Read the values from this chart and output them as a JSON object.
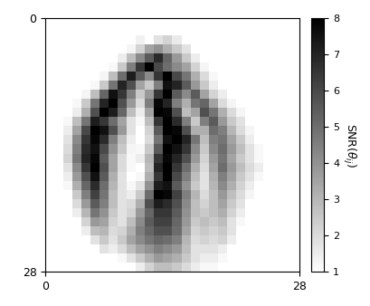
{
  "colormap": "gray_r",
  "vmin": 1,
  "vmax": 8,
  "colorbar_ticks": [
    1,
    2,
    3,
    4,
    5,
    6,
    7,
    8
  ],
  "xlim": [
    0,
    28
  ],
  "ylim": [
    28,
    0
  ],
  "xticks": [
    0,
    28
  ],
  "yticks": [
    0,
    28
  ],
  "figsize": [
    4.1,
    3.38
  ],
  "dpi": 100,
  "background": "#ffffff",
  "snr_data": [
    [
      0,
      0,
      0,
      0,
      0,
      0,
      0,
      0,
      0,
      0,
      0,
      0,
      0,
      0,
      0,
      0,
      0,
      0,
      0,
      0,
      0,
      0,
      0,
      0,
      0,
      0,
      0,
      0
    ],
    [
      0,
      0,
      0,
      0,
      0,
      0,
      0,
      0,
      0,
      0,
      0,
      0,
      0,
      0,
      0,
      0,
      0,
      0,
      0,
      0,
      0,
      0,
      0,
      0,
      0,
      0,
      0,
      0
    ],
    [
      0,
      0,
      0,
      0,
      0,
      0,
      0,
      0,
      0,
      0,
      1.4,
      0,
      1.8,
      2.2,
      1.6,
      0,
      0,
      0,
      0,
      0,
      0,
      0,
      0,
      0,
      0,
      0,
      0,
      0
    ],
    [
      0,
      0,
      0,
      0,
      0,
      0,
      0,
      0,
      0,
      1.3,
      2.2,
      3.5,
      4.0,
      3.2,
      2.5,
      1.8,
      0,
      0,
      0,
      0,
      0,
      0,
      0,
      0,
      0,
      0,
      0,
      0
    ],
    [
      0,
      0,
      0,
      0,
      0,
      0,
      0,
      0,
      1.5,
      2.8,
      4.2,
      5.5,
      6.8,
      5.2,
      3.8,
      2.5,
      1.5,
      0,
      0,
      0,
      0,
      0,
      0,
      0,
      0,
      0,
      0,
      0
    ],
    [
      0,
      0,
      0,
      0,
      0,
      0,
      0,
      1.2,
      2.5,
      4.5,
      6.5,
      8.0,
      6.0,
      5.0,
      4.2,
      3.5,
      2.2,
      1.3,
      0,
      0,
      0,
      0,
      0,
      0,
      0,
      0,
      0,
      0
    ],
    [
      0,
      0,
      0,
      0,
      0,
      0,
      1.3,
      2.8,
      5.0,
      7.2,
      5.5,
      4.2,
      6.5,
      8.0,
      6.0,
      4.8,
      3.2,
      2.0,
      1.2,
      0,
      0,
      0,
      0,
      0,
      0,
      0,
      0,
      0
    ],
    [
      0,
      0,
      0,
      0,
      0,
      1.2,
      2.5,
      4.8,
      7.0,
      5.8,
      3.5,
      2.5,
      4.5,
      7.5,
      7.0,
      5.5,
      3.8,
      2.5,
      1.5,
      1.0,
      0,
      0,
      0,
      0,
      0,
      0,
      0,
      0
    ],
    [
      0,
      0,
      0,
      0,
      1.3,
      2.8,
      5.2,
      7.5,
      6.5,
      4.5,
      2.5,
      3.8,
      6.5,
      8.0,
      5.5,
      4.2,
      5.5,
      3.5,
      2.2,
      1.5,
      0,
      0,
      0,
      0,
      0,
      0,
      0,
      0
    ],
    [
      0,
      0,
      0,
      1.2,
      2.5,
      4.8,
      7.0,
      8.0,
      5.8,
      3.8,
      2.0,
      4.5,
      7.8,
      7.0,
      4.5,
      3.2,
      4.8,
      5.2,
      3.5,
      2.0,
      1.3,
      0,
      0,
      0,
      0,
      0,
      0,
      0
    ],
    [
      0,
      0,
      0,
      1.5,
      3.2,
      5.8,
      8.0,
      7.2,
      5.2,
      2.8,
      1.5,
      3.5,
      8.0,
      7.8,
      5.8,
      2.8,
      3.5,
      5.8,
      4.8,
      3.2,
      2.0,
      1.3,
      0,
      0,
      0,
      0,
      0,
      0
    ],
    [
      0,
      0,
      1.2,
      2.8,
      4.8,
      7.2,
      6.5,
      5.0,
      3.5,
      1.8,
      1.2,
      2.8,
      6.5,
      8.0,
      6.8,
      4.5,
      2.5,
      4.5,
      5.5,
      3.8,
      2.5,
      1.8,
      1.0,
      0,
      0,
      0,
      0,
      0
    ],
    [
      0,
      0,
      1.5,
      3.5,
      6.0,
      8.0,
      7.5,
      5.8,
      3.8,
      1.8,
      1.0,
      2.2,
      5.5,
      8.0,
      7.8,
      5.8,
      3.2,
      3.2,
      5.0,
      4.5,
      3.0,
      2.0,
      1.3,
      0,
      0,
      0,
      0,
      0
    ],
    [
      0,
      0,
      1.8,
      4.2,
      6.5,
      7.8,
      6.8,
      4.5,
      2.8,
      1.5,
      1.0,
      2.0,
      4.8,
      7.5,
      8.0,
      7.0,
      4.8,
      2.8,
      4.5,
      4.8,
      3.5,
      2.5,
      1.5,
      1.0,
      0,
      0,
      0,
      0
    ],
    [
      0,
      0,
      2.0,
      4.5,
      6.8,
      7.5,
      6.0,
      4.0,
      2.5,
      1.3,
      1.2,
      2.5,
      5.5,
      8.0,
      7.5,
      6.5,
      4.2,
      2.5,
      4.2,
      5.0,
      3.8,
      2.8,
      1.8,
      1.2,
      0,
      0,
      0,
      0
    ],
    [
      0,
      0,
      2.2,
      4.8,
      7.0,
      7.8,
      5.5,
      3.5,
      2.0,
      1.2,
      1.5,
      3.0,
      6.5,
      7.8,
      7.0,
      5.8,
      3.8,
      2.2,
      3.8,
      4.8,
      3.5,
      2.5,
      1.8,
      1.2,
      0,
      0,
      0,
      0
    ],
    [
      0,
      0,
      1.8,
      4.2,
      6.5,
      8.0,
      5.8,
      3.5,
      2.0,
      1.2,
      1.0,
      2.8,
      7.0,
      8.0,
      6.5,
      5.0,
      3.2,
      2.0,
      3.5,
      5.0,
      3.8,
      2.8,
      2.0,
      1.5,
      1.0,
      0,
      0,
      0
    ],
    [
      0,
      0,
      1.5,
      3.8,
      5.8,
      7.5,
      5.5,
      3.2,
      1.8,
      1.0,
      1.2,
      3.2,
      6.5,
      8.0,
      6.0,
      4.5,
      2.8,
      1.8,
      3.2,
      4.5,
      3.5,
      2.5,
      1.8,
      1.2,
      0,
      0,
      0,
      0
    ],
    [
      0,
      0,
      1.2,
      3.2,
      5.2,
      6.8,
      5.0,
      3.0,
      1.8,
      1.2,
      1.8,
      4.0,
      7.2,
      7.5,
      5.5,
      4.0,
      2.5,
      1.8,
      3.0,
      4.2,
      3.2,
      2.2,
      1.5,
      1.0,
      0,
      0,
      0,
      0
    ],
    [
      0,
      0,
      1.0,
      2.5,
      4.5,
      6.2,
      4.8,
      2.8,
      1.8,
      1.5,
      2.5,
      5.0,
      8.0,
      7.8,
      6.2,
      4.5,
      3.0,
      2.0,
      2.8,
      3.8,
      2.8,
      2.0,
      1.3,
      0,
      0,
      0,
      0,
      0
    ],
    [
      0,
      0,
      0,
      2.0,
      3.8,
      5.5,
      4.5,
      2.8,
      1.8,
      2.0,
      3.2,
      5.8,
      7.2,
      6.8,
      5.8,
      4.2,
      2.8,
      2.2,
      2.8,
      3.5,
      2.5,
      1.8,
      1.0,
      0,
      0,
      0,
      0,
      0
    ],
    [
      0,
      0,
      0,
      1.5,
      3.0,
      4.8,
      4.0,
      2.5,
      1.8,
      2.2,
      3.8,
      5.2,
      6.5,
      6.5,
      5.5,
      4.0,
      2.8,
      2.5,
      2.8,
      3.2,
      2.2,
      1.5,
      0,
      0,
      0,
      0,
      0,
      0
    ],
    [
      0,
      0,
      0,
      0,
      2.2,
      3.8,
      3.5,
      2.2,
      1.8,
      2.8,
      4.2,
      5.5,
      6.2,
      6.2,
      5.2,
      3.8,
      2.5,
      2.8,
      2.5,
      2.8,
      1.8,
      1.2,
      0,
      0,
      0,
      0,
      0,
      0
    ],
    [
      0,
      0,
      0,
      0,
      1.5,
      2.8,
      3.0,
      2.0,
      2.2,
      3.2,
      4.5,
      5.2,
      5.8,
      5.8,
      5.0,
      3.5,
      2.2,
      2.5,
      2.2,
      2.5,
      1.8,
      1.0,
      0,
      0,
      0,
      0,
      0,
      0
    ],
    [
      0,
      0,
      0,
      0,
      0,
      1.8,
      2.5,
      1.8,
      2.5,
      3.5,
      4.2,
      4.8,
      5.2,
      5.0,
      4.5,
      3.0,
      2.0,
      2.2,
      2.0,
      2.2,
      1.5,
      0,
      0,
      0,
      0,
      0,
      0,
      0
    ],
    [
      0,
      0,
      0,
      0,
      0,
      0,
      1.8,
      1.5,
      2.0,
      2.8,
      3.5,
      4.0,
      4.5,
      4.2,
      3.8,
      2.8,
      1.8,
      1.8,
      1.8,
      1.5,
      1.0,
      0,
      0,
      0,
      0,
      0,
      0,
      0
    ],
    [
      0,
      0,
      0,
      0,
      0,
      0,
      0,
      0,
      1.2,
      1.8,
      2.5,
      3.2,
      3.8,
      3.5,
      3.2,
      2.5,
      1.8,
      1.5,
      1.5,
      1.2,
      0,
      0,
      0,
      0,
      0,
      0,
      0,
      0
    ],
    [
      0,
      0,
      0,
      0,
      0,
      0,
      0,
      0,
      0,
      0,
      1.5,
      2.2,
      2.8,
      2.8,
      2.5,
      2.0,
      1.5,
      1.2,
      1.2,
      0,
      0,
      0,
      0,
      0,
      0,
      0,
      0,
      0
    ]
  ]
}
